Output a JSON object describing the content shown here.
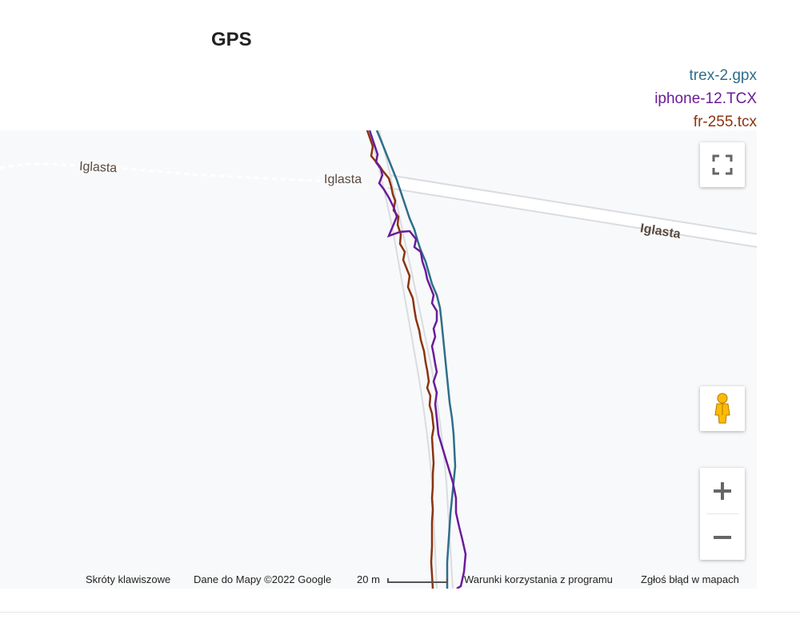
{
  "page": {
    "title": "GPS"
  },
  "legend": [
    {
      "label": "trex-2.gpx",
      "color": "#2e6e8a"
    },
    {
      "label": "iphone-12.TCX",
      "color": "#6a1b9a"
    },
    {
      "label": "fr-255.tcx",
      "color": "#8a3410"
    }
  ],
  "map": {
    "street_labels": [
      "Iglasta",
      "Iglasta",
      "Iglasta"
    ],
    "controls": {
      "fullscreen": "fullscreen-icon",
      "street_view": "pegman-icon",
      "zoom_in": "+",
      "zoom_out": "−"
    },
    "footer": {
      "shortcuts": "Skróty klawiszowe",
      "map_data": "Dane do Mapy ©2022 Google",
      "scale": "20 m",
      "terms": "Warunki korzystania z programu",
      "report": "Zgłoś błąd w mapach"
    }
  }
}
